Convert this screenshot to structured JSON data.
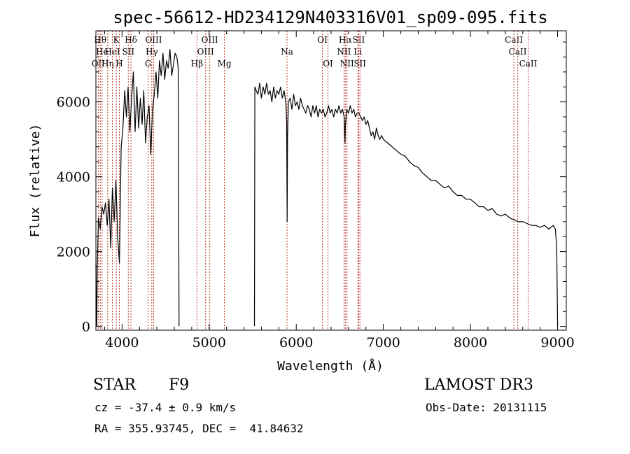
{
  "chart_data": {
    "type": "line",
    "title": "spec-56612-HD234129N403316V01_sp09-095.fits",
    "xlabel": "Wavelength (Å)",
    "ylabel": "Flux (relative)",
    "xlim": [
      3700,
      9100
    ],
    "ylim": [
      -100,
      7900
    ],
    "xticks": [
      4000,
      5000,
      6000,
      7000,
      8000,
      9000
    ],
    "yticks": [
      0,
      2000,
      4000,
      6000
    ],
    "series": [
      {
        "name": "flux",
        "segments": [
          [
            [
              3700,
              1700
            ],
            [
              3705,
              300
            ],
            [
              3710,
              20
            ],
            [
              3715,
              1600
            ],
            [
              3730,
              2900
            ],
            [
              3750,
              2600
            ],
            [
              3770,
              3200
            ],
            [
              3790,
              3000
            ],
            [
              3810,
              3300
            ],
            [
              3830,
              2700
            ],
            [
              3850,
              3400
            ],
            [
              3870,
              2100
            ],
            [
              3890,
              3700
            ],
            [
              3910,
              2800
            ],
            [
              3930,
              3900
            ],
            [
              3950,
              2400
            ],
            [
              3970,
              1700
            ],
            [
              3990,
              4800
            ],
            [
              4010,
              5300
            ],
            [
              4030,
              6300
            ],
            [
              4050,
              5600
            ],
            [
              4070,
              6400
            ],
            [
              4090,
              5200
            ],
            [
              4110,
              6100
            ],
            [
              4130,
              6800
            ],
            [
              4150,
              5200
            ],
            [
              4170,
              6400
            ],
            [
              4190,
              5300
            ],
            [
              4210,
              6100
            ],
            [
              4230,
              5400
            ],
            [
              4250,
              6300
            ],
            [
              4270,
              4900
            ],
            [
              4290,
              5600
            ],
            [
              4310,
              5900
            ],
            [
              4330,
              4600
            ],
            [
              4350,
              5800
            ],
            [
              4370,
              6200
            ],
            [
              4390,
              6800
            ],
            [
              4410,
              6100
            ],
            [
              4430,
              7100
            ],
            [
              4450,
              6700
            ],
            [
              4470,
              7300
            ],
            [
              4490,
              6600
            ],
            [
              4510,
              7100
            ],
            [
              4530,
              6900
            ],
            [
              4550,
              7400
            ],
            [
              4570,
              6700
            ],
            [
              4590,
              7000
            ],
            [
              4610,
              7300
            ],
            [
              4630,
              7200
            ],
            [
              4645,
              6900
            ],
            [
              4655,
              10
            ]
          ],
          [
            [
              5520,
              10
            ],
            [
              5525,
              6400
            ],
            [
              5540,
              6300
            ],
            [
              5560,
              6200
            ],
            [
              5580,
              6500
            ],
            [
              5600,
              6100
            ],
            [
              5620,
              6400
            ],
            [
              5640,
              6200
            ],
            [
              5660,
              6500
            ],
            [
              5680,
              6200
            ],
            [
              5700,
              6300
            ],
            [
              5720,
              6000
            ],
            [
              5740,
              6400
            ],
            [
              5760,
              6100
            ],
            [
              5780,
              6300
            ],
            [
              5800,
              6200
            ],
            [
              5820,
              6400
            ],
            [
              5840,
              6100
            ],
            [
              5860,
              6300
            ],
            [
              5880,
              6000
            ],
            [
              5890,
              5500
            ],
            [
              5895,
              2800
            ],
            [
              5900,
              5100
            ],
            [
              5910,
              6000
            ],
            [
              5930,
              6100
            ],
            [
              5950,
              5800
            ],
            [
              5970,
              6200
            ],
            [
              5990,
              5900
            ],
            [
              6010,
              6000
            ],
            [
              6030,
              5800
            ],
            [
              6050,
              6100
            ],
            [
              6070,
              5900
            ],
            [
              6090,
              5800
            ],
            [
              6110,
              5700
            ],
            [
              6130,
              5900
            ],
            [
              6150,
              5800
            ],
            [
              6170,
              5600
            ],
            [
              6190,
              5900
            ],
            [
              6210,
              5700
            ],
            [
              6230,
              5900
            ],
            [
              6250,
              5600
            ],
            [
              6270,
              5800
            ],
            [
              6290,
              5700
            ],
            [
              6310,
              5800
            ],
            [
              6330,
              5600
            ],
            [
              6350,
              5700
            ],
            [
              6370,
              5900
            ],
            [
              6390,
              5700
            ],
            [
              6410,
              5800
            ],
            [
              6430,
              5600
            ],
            [
              6450,
              5800
            ],
            [
              6470,
              5700
            ],
            [
              6490,
              5900
            ],
            [
              6510,
              5700
            ],
            [
              6530,
              5800
            ],
            [
              6550,
              5600
            ],
            [
              6560,
              4900
            ],
            [
              6565,
              5400
            ],
            [
              6580,
              5800
            ],
            [
              6600,
              5700
            ],
            [
              6620,
              5900
            ],
            [
              6640,
              5700
            ],
            [
              6660,
              5800
            ],
            [
              6680,
              5600
            ],
            [
              6700,
              5700
            ],
            [
              6720,
              5700
            ],
            [
              6740,
              5600
            ],
            [
              6760,
              5500
            ],
            [
              6780,
              5600
            ],
            [
              6800,
              5400
            ],
            [
              6820,
              5500
            ],
            [
              6840,
              5300
            ],
            [
              6860,
              5100
            ],
            [
              6880,
              5200
            ],
            [
              6900,
              5000
            ],
            [
              6920,
              5300
            ],
            [
              6940,
              5100
            ],
            [
              6960,
              5000
            ],
            [
              6980,
              5100
            ],
            [
              7000,
              5000
            ],
            [
              7050,
              4900
            ],
            [
              7100,
              4800
            ],
            [
              7150,
              4700
            ],
            [
              7200,
              4600
            ],
            [
              7250,
              4550
            ],
            [
              7300,
              4400
            ],
            [
              7350,
              4300
            ],
            [
              7400,
              4250
            ],
            [
              7450,
              4100
            ],
            [
              7500,
              4000
            ],
            [
              7550,
              3900
            ],
            [
              7600,
              3900
            ],
            [
              7650,
              3800
            ],
            [
              7700,
              3700
            ],
            [
              7750,
              3750
            ],
            [
              7800,
              3600
            ],
            [
              7850,
              3500
            ],
            [
              7900,
              3500
            ],
            [
              7950,
              3400
            ],
            [
              8000,
              3400
            ],
            [
              8050,
              3300
            ],
            [
              8100,
              3200
            ],
            [
              8150,
              3200
            ],
            [
              8200,
              3100
            ],
            [
              8250,
              3150
            ],
            [
              8300,
              3000
            ],
            [
              8350,
              2950
            ],
            [
              8400,
              3000
            ],
            [
              8450,
              2900
            ],
            [
              8500,
              2850
            ],
            [
              8550,
              2800
            ],
            [
              8600,
              2800
            ],
            [
              8650,
              2750
            ],
            [
              8700,
              2700
            ],
            [
              8750,
              2700
            ],
            [
              8800,
              2650
            ],
            [
              8850,
              2700
            ],
            [
              8900,
              2600
            ],
            [
              8950,
              2700
            ],
            [
              8975,
              2600
            ],
            [
              8990,
              2100
            ],
            [
              9000,
              10
            ]
          ]
        ]
      }
    ],
    "spectral_lines": [
      {
        "wavelength": 3727,
        "label": "OII",
        "row": 3
      },
      {
        "wavelength": 3750,
        "label": "Hθ",
        "row": 1
      },
      {
        "wavelength": 3771,
        "label": "He",
        "row": 2
      },
      {
        "wavelength": 3835,
        "label": "Hη",
        "row": 3
      },
      {
        "wavelength": 3889,
        "label": "HeI",
        "row": 2
      },
      {
        "wavelength": 3934,
        "label": "K",
        "row": 1
      },
      {
        "wavelength": 3969,
        "label": "H",
        "row": 3
      },
      {
        "wavelength": 4072,
        "label": "SII",
        "row": 2
      },
      {
        "wavelength": 4102,
        "label": "Hδ",
        "row": 1
      },
      {
        "wavelength": 4300,
        "label": "G",
        "row": 3
      },
      {
        "wavelength": 4341,
        "label": "Hγ",
        "row": 2
      },
      {
        "wavelength": 4363,
        "label": "OIII",
        "row": 1
      },
      {
        "wavelength": 4861,
        "label": "Hβ",
        "row": 3
      },
      {
        "wavelength": 4959,
        "label": "OIII",
        "row": 2
      },
      {
        "wavelength": 5007,
        "label": "OIII",
        "row": 1
      },
      {
        "wavelength": 5175,
        "label": "Mg",
        "row": 3
      },
      {
        "wavelength": 5894,
        "label": "Na",
        "row": 2
      },
      {
        "wavelength": 6300,
        "label": "OI",
        "row": 1
      },
      {
        "wavelength": 6364,
        "label": "OI",
        "row": 3
      },
      {
        "wavelength": 6548,
        "label": "NII",
        "row": 2
      },
      {
        "wavelength": 6563,
        "label": "Hα",
        "row": 1
      },
      {
        "wavelength": 6583,
        "label": "NII",
        "row": 3
      },
      {
        "wavelength": 6708,
        "label": "Li",
        "row": 2
      },
      {
        "wavelength": 6717,
        "label": "SII",
        "row": 1
      },
      {
        "wavelength": 6731,
        "label": "SII",
        "row": 3
      },
      {
        "wavelength": 8498,
        "label": "CaII",
        "row": 1
      },
      {
        "wavelength": 8542,
        "label": "CaII",
        "row": 2
      },
      {
        "wavelength": 8662,
        "label": "CaII",
        "row": 3
      }
    ]
  },
  "info": {
    "object_class": "STAR",
    "subclass": "F9",
    "survey": "LAMOST DR3",
    "cz": "cz = -37.4 ± 0.9 km/s",
    "obs_date": "Obs-Date: 20131115",
    "coords": "RA = 355.93745, DEC =  41.84632"
  },
  "colors": {
    "line_marker": "#c0392b",
    "spectrum": "#000000"
  }
}
